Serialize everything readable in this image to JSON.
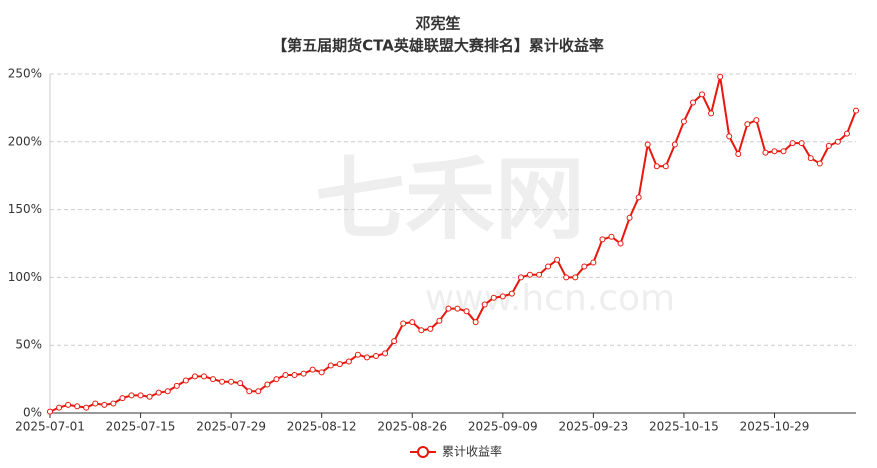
{
  "chart_data": {
    "type": "line",
    "title": "邓宪笙",
    "subtitle": "【第五届期货CTA英雄联盟大赛排名】累计收益率",
    "watermark": [
      "七禾网",
      "www.hcn.com"
    ],
    "categories": [
      "2025-07-01",
      null,
      null,
      null,
      null,
      null,
      null,
      null,
      null,
      null,
      "2025-07-15",
      null,
      null,
      null,
      null,
      null,
      null,
      null,
      null,
      null,
      "2025-07-29",
      null,
      null,
      null,
      null,
      null,
      null,
      null,
      null,
      null,
      "2025-08-12",
      null,
      null,
      null,
      null,
      null,
      null,
      null,
      null,
      null,
      "2025-08-26",
      null,
      null,
      null,
      null,
      null,
      null,
      null,
      null,
      null,
      "2025-09-09",
      null,
      null,
      null,
      null,
      null,
      null,
      null,
      null,
      null,
      "2025-09-23",
      null,
      null,
      null,
      null,
      null,
      null,
      null,
      null,
      null,
      "2025-10-15",
      null,
      null,
      null,
      null,
      null,
      null,
      null,
      null,
      null,
      "2025-10-29",
      null,
      null,
      null,
      null,
      null,
      null,
      null,
      null,
      null
    ],
    "series": [
      {
        "name": "累计收益率",
        "color": "#e8160c",
        "values": [
          1,
          4,
          6,
          5,
          4,
          7,
          6,
          7,
          11,
          13,
          13,
          12,
          15,
          16,
          20,
          24,
          27,
          27,
          25,
          23,
          23,
          22,
          16,
          16,
          21,
          25,
          28,
          28,
          29,
          32,
          30,
          35,
          36,
          38,
          43,
          41,
          42,
          44,
          53,
          66,
          67,
          61,
          62,
          68,
          77,
          77,
          75,
          67,
          80,
          85,
          86,
          88,
          100,
          102,
          102,
          108,
          113,
          100,
          100,
          108,
          111,
          128,
          130,
          125,
          144,
          159,
          198,
          182,
          182,
          198,
          215,
          229,
          235,
          221,
          248,
          204,
          191,
          213,
          216,
          192,
          193,
          193,
          199,
          199,
          188,
          184,
          197,
          200,
          206,
          223
        ]
      }
    ],
    "ylim": [
      0,
      250
    ],
    "yticks": [
      {
        "value": 0,
        "label": "0%"
      },
      {
        "value": 50,
        "label": "50%"
      },
      {
        "value": 100,
        "label": "100%"
      },
      {
        "value": 150,
        "label": "150%"
      },
      {
        "value": 200,
        "label": "200%"
      },
      {
        "value": 250,
        "label": "250%"
      }
    ],
    "grid": true,
    "legend": "bottom"
  }
}
